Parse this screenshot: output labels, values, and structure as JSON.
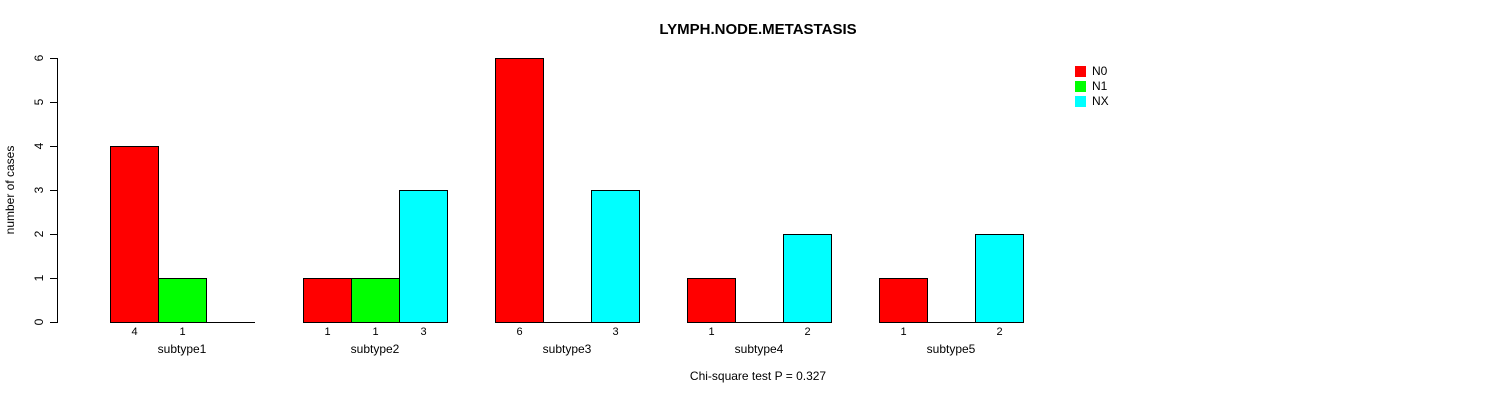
{
  "title": "LYMPH.NODE.METASTASIS",
  "caption": "Chi-square test P = 0.327",
  "colors": {
    "background": "#ffffff",
    "text": "#000000",
    "axis": "#000000",
    "bar_border": "#000000",
    "n0_red": "#ff0000",
    "n1_green": "#00ff00",
    "nx_cyan": "#00ffff"
  },
  "chart_data": {
    "type": "bar",
    "title": "LYMPH.NODE.METASTASIS",
    "xlabel": "",
    "ylabel": "number of cases",
    "ylim": [
      0,
      6
    ],
    "yticks": [
      0,
      1,
      2,
      3,
      4,
      5,
      6
    ],
    "grid": false,
    "grouped": true,
    "categories": [
      "subtype1",
      "subtype2",
      "subtype3",
      "subtype4",
      "subtype5"
    ],
    "series": [
      {
        "name": "N0",
        "color": "#ff0000",
        "values": [
          4,
          1,
          6,
          1,
          1
        ]
      },
      {
        "name": "N1",
        "color": "#00ff00",
        "values": [
          1,
          1,
          0,
          0,
          0
        ]
      },
      {
        "name": "NX",
        "color": "#00ffff",
        "values": [
          0,
          3,
          3,
          2,
          2
        ]
      }
    ],
    "bar_value_labels": [
      [
        "4",
        "1",
        ""
      ],
      [
        "1",
        "1",
        "3"
      ],
      [
        "6",
        "",
        "3"
      ],
      [
        "1",
        "",
        "2"
      ],
      [
        "1",
        "",
        "2"
      ]
    ],
    "legend": {
      "position": "top-right",
      "entries": [
        "N0",
        "N1",
        "NX"
      ]
    },
    "annotation": "Chi-square test P = 0.327"
  }
}
